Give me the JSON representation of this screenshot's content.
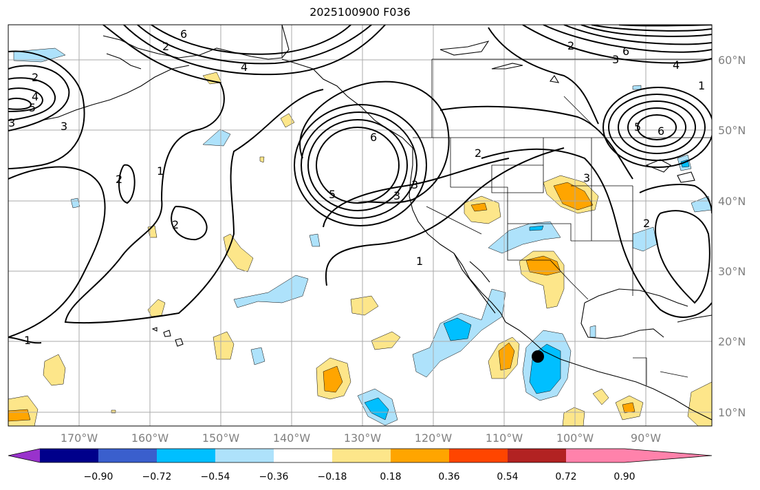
{
  "title": "2025100900 F036",
  "lat_labels": [
    "60°N",
    "50°N",
    "40°N",
    "30°N",
    "20°N",
    "10°N"
  ],
  "lon_labels": [
    "170°W",
    "160°W",
    "150°W",
    "140°W",
    "130°W",
    "120°W",
    "110°W",
    "100°W",
    "90°W"
  ],
  "colorbar": {
    "tick_labels": [
      "−0.90",
      "−0.72",
      "−0.54",
      "−0.36",
      "−0.18",
      "0.18",
      "0.36",
      "0.54",
      "0.72",
      "0.90"
    ],
    "colors": [
      "#9932cc",
      "#00008b",
      "#3a5fcd",
      "#00bfff",
      "#aee2fb",
      "#ffffff",
      "#fde68a",
      "#ffa500",
      "#ff4500",
      "#b22222",
      "#ff82ab"
    ]
  },
  "contour_labels": [
    "6",
    "2",
    "4",
    "2",
    "4",
    "3",
    "5",
    "3",
    "1",
    "2",
    "2",
    "1",
    "6",
    "5",
    "3",
    "3",
    "2",
    "1",
    "1",
    "2",
    "6",
    "4",
    "6",
    "5",
    "3",
    "2",
    "3"
  ],
  "marker": "storm-center"
}
